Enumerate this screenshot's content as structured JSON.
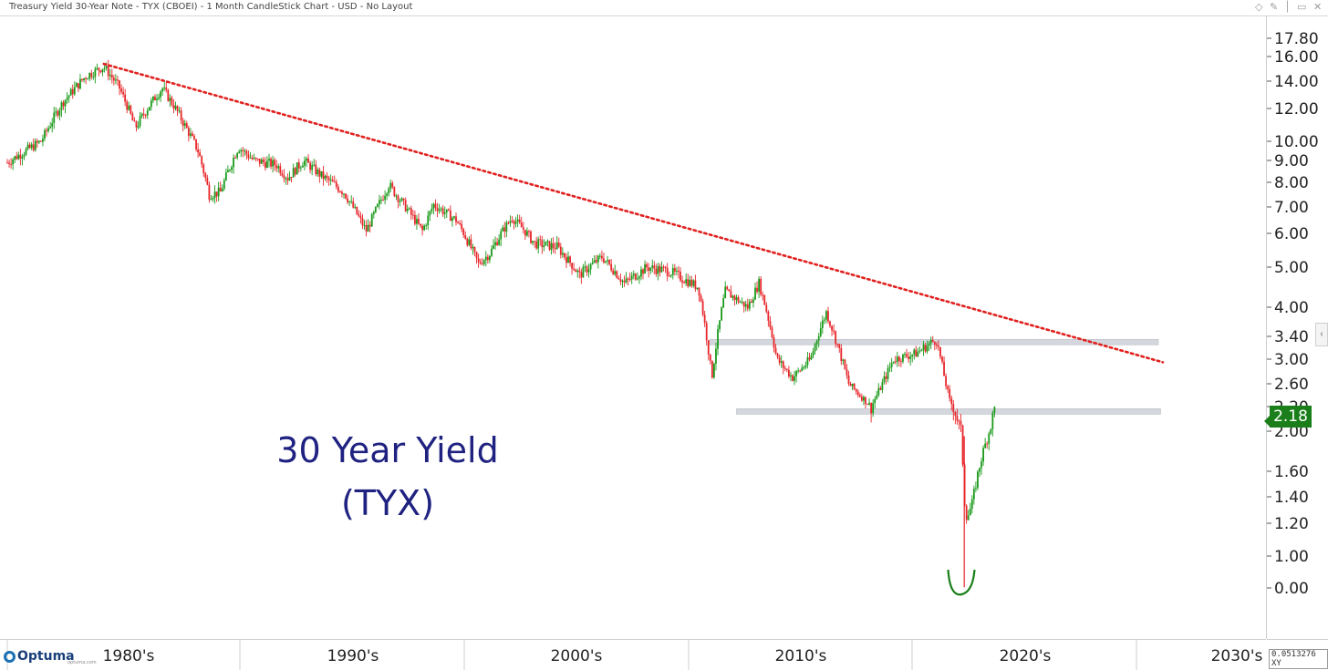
{
  "window": {
    "title": "Treasury Yield 30-Year Note - TYX (CBOEI) - 1 Month CandleStick Chart - USD - No Layout",
    "controls": [
      "◇",
      "✎",
      "│",
      "▭",
      "✕"
    ]
  },
  "annotation": {
    "line1": "30 Year Yield",
    "line2": "(TYX)"
  },
  "price_badge": "2.18",
  "footer": {
    "logo": "Optuma",
    "logo_sub": "optuma.com",
    "scale_value": "0.0513276",
    "scale_mode": "XY"
  },
  "colors": {
    "up": "#1a9a1a",
    "down": "#e8262a",
    "trendline": "#e0201e",
    "annotation": "#1f2280",
    "badge": "#1a7f1a",
    "zone": "#d4d8de"
  },
  "chart_data": {
    "type": "candlestick",
    "title": "Treasury Yield 30-Year Note - TYX (CBOEI) - 1 Month CandleStick Chart - USD - No Layout",
    "interval": "1 Month",
    "currency": "USD",
    "scale": "log-like",
    "y_ticks": [
      17.8,
      16.0,
      14.0,
      12.0,
      10.0,
      9.0,
      8.0,
      7.0,
      6.0,
      5.0,
      4.0,
      3.4,
      3.0,
      2.6,
      2.2,
      2.0,
      1.6,
      1.4,
      1.2,
      1.0,
      0.0
    ],
    "y_tick_labels": [
      "17.80",
      "16.00",
      "14.00",
      "12.00",
      "10.00",
      "9.00",
      "8.00",
      "7.00",
      "6.00",
      "5.00",
      "4.00",
      "3.40",
      "3.00",
      "2.60",
      "2.20",
      "2.00",
      "1.60",
      "1.40",
      "1.20",
      "1.00",
      "0.00"
    ],
    "x_labels": [
      "1980's",
      "1990's",
      "2000's",
      "2010's",
      "2020's",
      "2030's"
    ],
    "x_range": [
      1977.5,
      2032
    ],
    "last_price": 2.18,
    "path": [
      [
        1977.5,
        8.9
      ],
      [
        1979.0,
        10.0
      ],
      [
        1980.0,
        12.5
      ],
      [
        1981.0,
        14.4
      ],
      [
        1981.8,
        15.2
      ],
      [
        1982.5,
        13.5
      ],
      [
        1983.2,
        10.8
      ],
      [
        1984.4,
        13.5
      ],
      [
        1985.2,
        11.5
      ],
      [
        1986.0,
        9.5
      ],
      [
        1986.5,
        7.5
      ],
      [
        1987.0,
        7.6
      ],
      [
        1987.8,
        9.7
      ],
      [
        1988.5,
        9.0
      ],
      [
        1989.5,
        8.8
      ],
      [
        1990.0,
        8.2
      ],
      [
        1990.7,
        9.0
      ],
      [
        1991.5,
        8.3
      ],
      [
        1992.5,
        7.6
      ],
      [
        1993.5,
        6.1
      ],
      [
        1994.5,
        7.9
      ],
      [
        1995.5,
        6.7
      ],
      [
        1996.0,
        6.1
      ],
      [
        1996.5,
        7.1
      ],
      [
        1997.5,
        6.5
      ],
      [
        1998.5,
        5.1
      ],
      [
        1999.0,
        5.4
      ],
      [
        2000.0,
        6.6
      ],
      [
        2001.0,
        5.7
      ],
      [
        2002.0,
        5.6
      ],
      [
        2003.0,
        4.8
      ],
      [
        2004.0,
        5.3
      ],
      [
        2005.0,
        4.6
      ],
      [
        2006.0,
        5.0
      ],
      [
        2007.0,
        4.9
      ],
      [
        2008.3,
        4.5
      ],
      [
        2008.9,
        2.7
      ],
      [
        2009.5,
        4.4
      ],
      [
        2010.5,
        4.0
      ],
      [
        2011.0,
        4.6
      ],
      [
        2011.8,
        3.0
      ],
      [
        2012.5,
        2.7
      ],
      [
        2013.3,
        3.0
      ],
      [
        2014.0,
        3.9
      ],
      [
        2015.0,
        2.6
      ],
      [
        2016.0,
        2.2
      ],
      [
        2017.0,
        3.0
      ],
      [
        2018.0,
        3.1
      ],
      [
        2018.9,
        3.35
      ],
      [
        2019.5,
        2.3
      ],
      [
        2020.0,
        2.0
      ],
      [
        2020.2,
        1.2
      ],
      [
        2020.5,
        1.35
      ],
      [
        2021.0,
        1.8
      ],
      [
        2021.5,
        2.18
      ]
    ],
    "trendline": [
      [
        1981.8,
        15.4
      ],
      [
        2029.0,
        2.95
      ]
    ],
    "zones": [
      {
        "from": 2008.8,
        "to": 2028.8,
        "level": 3.3
      },
      {
        "from": 2010.0,
        "to": 2028.9,
        "level": 2.16
      }
    ],
    "smile_annotation": {
      "at": 2020.0,
      "level": 0.0
    }
  }
}
